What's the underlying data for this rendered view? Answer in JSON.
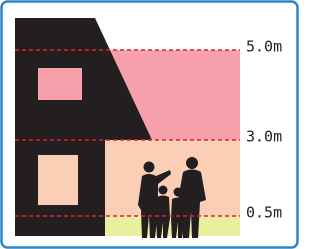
{
  "levels": [
    {
      "label": "5.0m"
    },
    {
      "label": "3.0m"
    },
    {
      "label": "0.5m"
    }
  ]
}
